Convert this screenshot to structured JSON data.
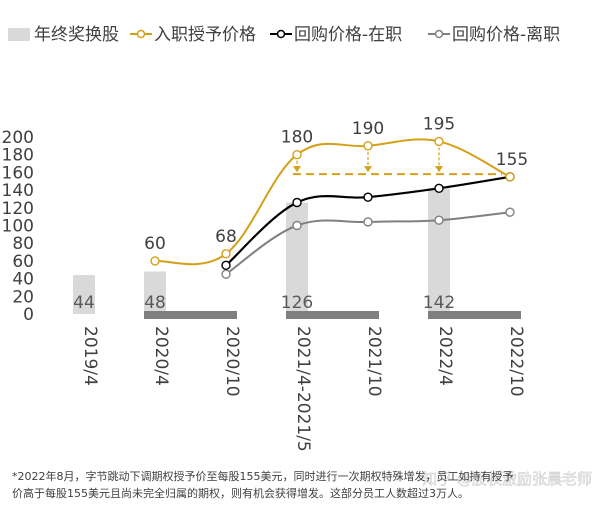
{
  "chart_data": {
    "type": "bar",
    "categories": [
      "2019/4",
      "2020/4",
      "2020/10",
      "2021/4-2021/5",
      "2021/10",
      "2022/4",
      "2022/10"
    ],
    "ylim": [
      0,
      200
    ],
    "yticks": [
      0,
      20,
      40,
      60,
      80,
      100,
      120,
      140,
      160,
      180,
      200
    ],
    "grid": false,
    "legend_position": "top",
    "series": [
      {
        "name": "年终奖换股",
        "kind": "bar",
        "color": "#d9d9d9",
        "values": [
          44,
          48,
          null,
          126,
          null,
          142,
          null
        ],
        "value_labels": [
          "44",
          "48",
          "",
          "126",
          "",
          "142",
          ""
        ]
      },
      {
        "name": "入职授予价格",
        "kind": "line",
        "color": "#d4a017",
        "values": [
          null,
          60,
          68,
          180,
          190,
          195,
          155
        ],
        "value_labels": [
          "",
          "60",
          "68",
          "180",
          "190",
          "195",
          "155"
        ]
      },
      {
        "name": "回购价格-在职",
        "kind": "line",
        "color": "#000000",
        "values": [
          null,
          null,
          55,
          126,
          132,
          142,
          155
        ]
      },
      {
        "name": "回购价格-离职",
        "kind": "line",
        "color": "#808080",
        "values": [
          null,
          null,
          45,
          100,
          104,
          106,
          115
        ]
      }
    ],
    "reference_line": {
      "value": 158,
      "from": "2021/4-2021/5",
      "to": "2022/10",
      "color": "#d4a017",
      "style": "dashed"
    },
    "gray_segments": [
      {
        "from": "2020/4",
        "to": "2020/10"
      },
      {
        "from": "2021/4-2021/5",
        "to": "2021/10"
      },
      {
        "from": "2022/4",
        "to": "2022/10"
      }
    ]
  },
  "footnote": {
    "line1": "*2022年8月，字节跳动下调期权授予价至每股155美元，同时进行一次期权特殊增发，员工如持有授予",
    "line2": "价高于每股155美元且尚未完全归属的期权，则有机会获得增发。这部分员工人数超过3万人。"
  },
  "watermark": "知乎 @股权激励张晨老师"
}
